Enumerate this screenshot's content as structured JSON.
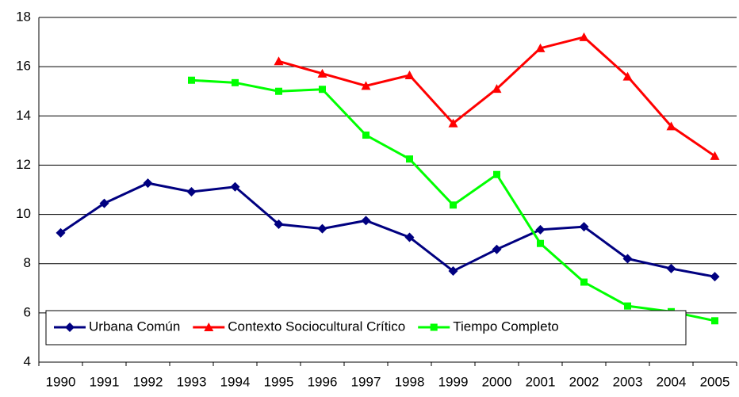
{
  "chart_data": {
    "type": "line",
    "categories": [
      "1990",
      "1991",
      "1992",
      "1993",
      "1994",
      "1995",
      "1996",
      "1997",
      "1998",
      "1999",
      "2000",
      "2001",
      "2002",
      "2003",
      "2004",
      "2005"
    ],
    "series": [
      {
        "name": "Urbana Común",
        "color": "#000080",
        "marker": "diamond",
        "values": [
          9.25,
          10.45,
          11.27,
          10.92,
          11.12,
          9.6,
          9.42,
          9.75,
          9.07,
          7.7,
          8.58,
          9.38,
          9.5,
          8.2,
          7.8,
          7.47
        ]
      },
      {
        "name": "Contexto Sociocultural Crítico",
        "color": "#ff0000",
        "marker": "triangle",
        "values": [
          null,
          null,
          null,
          null,
          null,
          16.22,
          15.72,
          15.22,
          15.65,
          13.7,
          15.1,
          16.75,
          17.2,
          15.6,
          13.58,
          12.37
        ]
      },
      {
        "name": "Tiempo Completo",
        "color": "#00ff00",
        "marker": "square",
        "values": [
          null,
          null,
          null,
          15.45,
          15.35,
          15.0,
          15.08,
          13.22,
          12.25,
          10.38,
          11.62,
          8.82,
          7.25,
          6.28,
          6.05,
          5.68
        ]
      }
    ],
    "ylim": [
      4,
      18
    ],
    "yticks": [
      4,
      6,
      8,
      10,
      12,
      14,
      16,
      18
    ],
    "grid": true,
    "legend": "bottom"
  }
}
